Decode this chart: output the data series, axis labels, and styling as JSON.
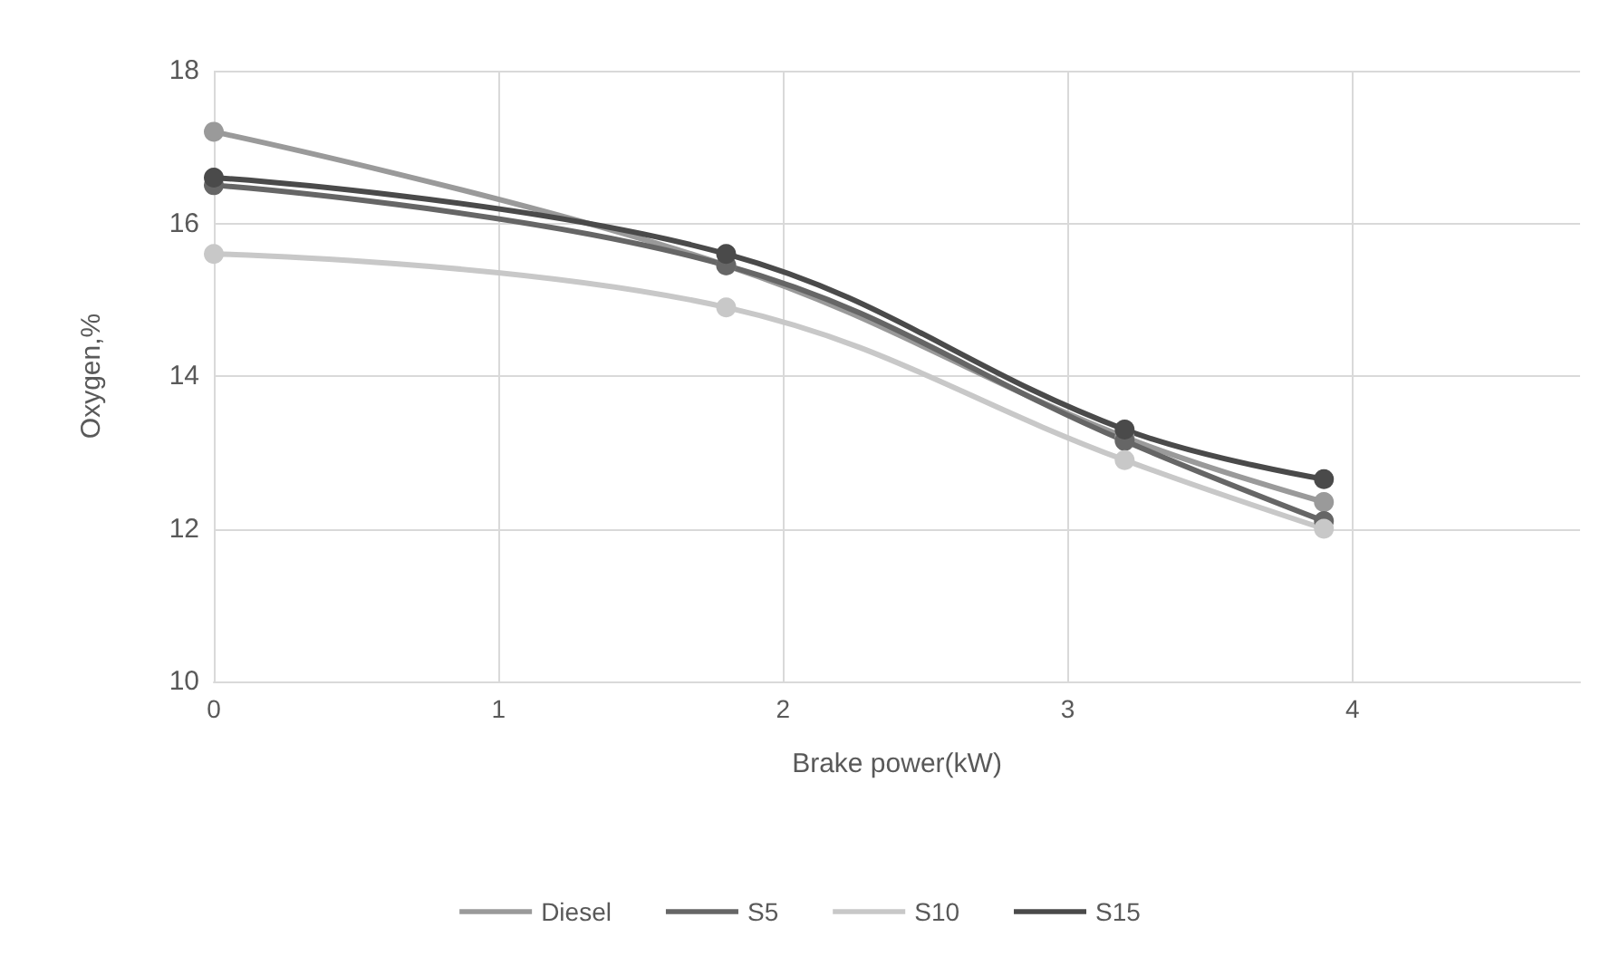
{
  "chart_data": {
    "type": "line",
    "xlabel": "Brake power(kW)",
    "ylabel": "Oxygen,%",
    "x": [
      0,
      1.8,
      3.2,
      3.9
    ],
    "series": [
      {
        "name": "Diesel",
        "color": "#9a9a9a",
        "values": [
          17.2,
          15.45,
          13.2,
          12.35
        ]
      },
      {
        "name": "S5",
        "color": "#666666",
        "values": [
          16.5,
          15.45,
          13.15,
          12.1
        ]
      },
      {
        "name": "S10",
        "color": "#c8c8c8",
        "values": [
          15.6,
          14.9,
          12.9,
          12.0
        ]
      },
      {
        "name": "S15",
        "color": "#4a4a4a",
        "values": [
          16.6,
          15.6,
          13.3,
          12.65
        ]
      }
    ],
    "xlim": [
      0,
      4.8
    ],
    "xticks": [
      0,
      1,
      2,
      3,
      4
    ],
    "ylim": [
      10,
      18
    ],
    "yticks": [
      10,
      12,
      14,
      16,
      18
    ],
    "grid": true,
    "legend": "bottom",
    "marker": "circle",
    "line_style": "solid"
  }
}
